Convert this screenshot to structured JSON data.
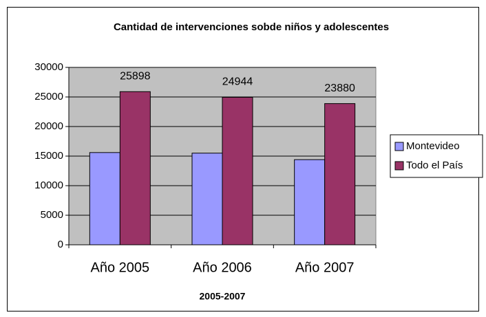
{
  "chart_data": {
    "type": "bar",
    "title": "Cantidad de intervenciones sobde niños y adolescentes",
    "x_label": "2005-2007",
    "categories": [
      "Año 2005",
      "Año 2006",
      "Año 2007"
    ],
    "series": [
      {
        "name": "Montevideo",
        "color": "#9999ff",
        "values": [
          15600,
          15500,
          14400
        ]
      },
      {
        "name": "Todo el País",
        "color": "#993366",
        "values": [
          25898,
          24944,
          23880
        ],
        "data_labels": true
      }
    ],
    "ylim": [
      0,
      30000
    ],
    "yticks": [
      0,
      5000,
      10000,
      15000,
      20000,
      25000,
      30000
    ],
    "grid": true,
    "legend": "right",
    "plot_background": "#c0c0c0"
  }
}
